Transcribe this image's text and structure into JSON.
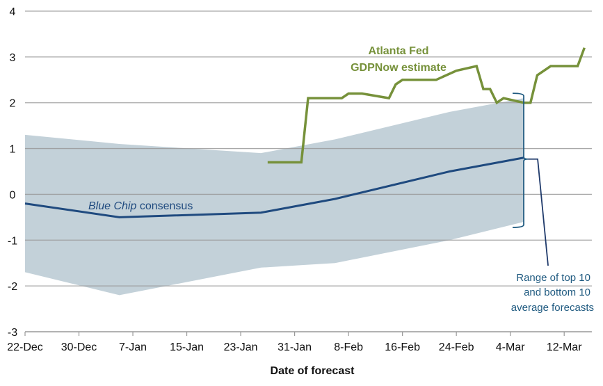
{
  "chart_data": {
    "type": "line",
    "title": "",
    "xlabel": "Date of forecast",
    "ylabel": "",
    "ylim": [
      -3,
      4
    ],
    "yticks": [
      4,
      3,
      2,
      1,
      0,
      -1,
      -2,
      -3
    ],
    "ytick_labels": [
      "4",
      "3",
      "2",
      "1",
      "0",
      "-1",
      "-2",
      "-3"
    ],
    "x_unit": "days since 22-Dec",
    "xlim": [
      0,
      84
    ],
    "xticks": [
      0,
      8,
      16,
      24,
      32,
      40,
      48,
      56,
      64,
      72,
      80
    ],
    "xtick_labels": [
      "22-Dec",
      "30-Dec",
      "7-Jan",
      "15-Jan",
      "23-Jan",
      "31-Jan",
      "8-Feb",
      "16-Feb",
      "24-Feb",
      "4-Mar",
      "12-Mar"
    ],
    "grid": "horizontal",
    "colors": {
      "band": "#c3d1d9",
      "blue_chip": "#1f4a7f",
      "gdpnow": "#76913a",
      "annotation": "#1f5a80",
      "grid": "#999999"
    },
    "series": [
      {
        "name": "Blue Chip consensus",
        "kind": "line",
        "x": [
          0,
          14,
          35,
          46,
          63,
          74
        ],
        "y": [
          -0.2,
          -0.5,
          -0.4,
          -0.1,
          0.5,
          0.8
        ]
      },
      {
        "name": "Range of top 10 and bottom 10 average forecasts",
        "kind": "band",
        "x": [
          0,
          14,
          35,
          46,
          63,
          74
        ],
        "upper": [
          1.3,
          1.1,
          0.9,
          1.2,
          1.8,
          2.1
        ],
        "lower": [
          -1.7,
          -2.2,
          -1.6,
          -1.5,
          -1.0,
          -0.6
        ]
      },
      {
        "name": "Atlanta Fed GDPNow estimate",
        "kind": "line",
        "x": [
          36,
          41,
          42,
          47,
          48,
          50,
          54,
          55,
          56,
          61,
          64,
          67,
          68,
          69,
          70,
          71,
          74,
          75,
          76,
          78,
          82,
          83
        ],
        "y": [
          0.7,
          0.7,
          2.1,
          2.1,
          2.2,
          2.2,
          2.1,
          2.4,
          2.5,
          2.5,
          2.7,
          2.8,
          2.3,
          2.3,
          2.0,
          2.1,
          2.0,
          2.0,
          2.6,
          2.8,
          2.8,
          3.2
        ]
      }
    ],
    "annotations": {
      "gdpnow_line1": "Atlanta Fed",
      "gdpnow_line2": "GDPNow estimate",
      "blue_chip_italic": "Blue Chip",
      "blue_chip_rest": " consensus",
      "range_line1": "Range of top 10",
      "range_line2": "and bottom 10",
      "range_line3": "average forecasts"
    }
  }
}
